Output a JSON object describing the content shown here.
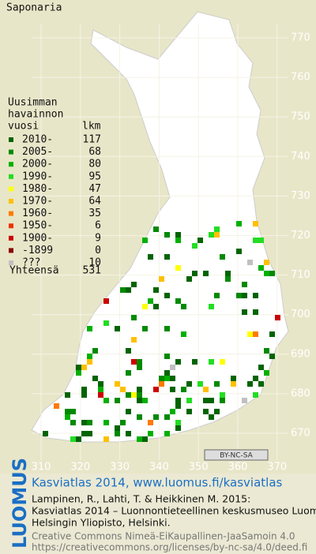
{
  "title": "Saponaria",
  "legend": {
    "heading": [
      "Uusimman",
      "havainnon",
      "vuosi"
    ],
    "count_heading": "lkm",
    "rows": [
      {
        "label": "2010-",
        "count": 117,
        "color": "#006400"
      },
      {
        "label": "2005-",
        "count": 68,
        "color": "#008a00"
      },
      {
        "label": "2000-",
        "count": 80,
        "color": "#00b000"
      },
      {
        "label": "1990-",
        "count": 95,
        "color": "#22dd22"
      },
      {
        "label": "1980-",
        "count": 47,
        "color": "#ffff00"
      },
      {
        "label": "1970-",
        "count": 64,
        "color": "#ffc000"
      },
      {
        "label": "1960-",
        "count": 35,
        "color": "#ff7a00"
      },
      {
        "label": "1950-",
        "count": 6,
        "color": "#ee3300"
      },
      {
        "label": "1900-",
        "count": 9,
        "color": "#cc0000"
      },
      {
        "label": "-1899",
        "count": 0,
        "color": "#880000"
      },
      {
        "label": "???",
        "count": 10,
        "color": "#c0c0c0"
      }
    ],
    "total_label": "Yhteensä",
    "total": 531
  },
  "map": {
    "yticks": [
      770,
      760,
      750,
      740,
      730,
      720,
      710,
      700,
      690,
      680,
      670
    ],
    "xticks": [
      310,
      320,
      330,
      340,
      350,
      360,
      370
    ],
    "license_badge": "BY-NC-SA"
  },
  "footer": {
    "logo": "LUOMUS",
    "title": "Kasviatlas 2014, www.luomus.fi/kasviatlas",
    "citation": [
      "Lampinen, R., Lahti, T. & Heikkinen M. 2015:",
      "Kasviatlas 2014 – Luonnontieteellinen keskusmuseo Luomus,",
      "Helsingin Yliopisto, Helsinki."
    ],
    "license": [
      "Creative Commons Nimeä-EiKaupallinen-JaaSamoin 4.0",
      "https://creativecommons.org/licenses/by-nc-sa/4.0/deed.fi"
    ]
  }
}
